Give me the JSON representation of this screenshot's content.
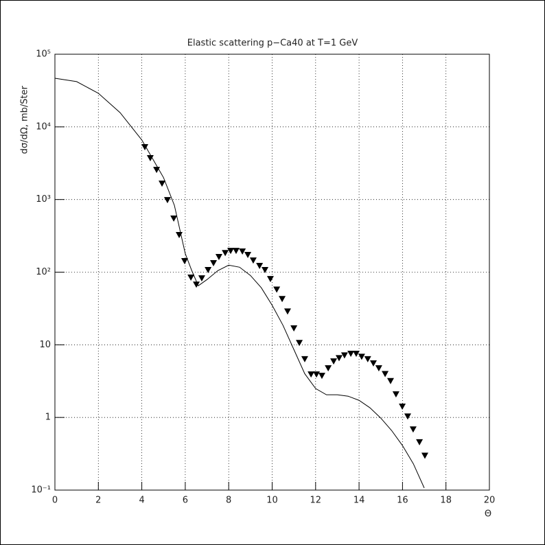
{
  "chart_data": {
    "type": "line",
    "title": "Elastic scattering p−Ca40 at T=1 GeV",
    "x_label": "Θ",
    "y_label": "dσ/dΩ, mb/Ster",
    "log_y": true,
    "grid": true,
    "xlim": [
      0,
      20
    ],
    "xticks": [
      0,
      2,
      4,
      6,
      8,
      10,
      12,
      14,
      16,
      18,
      20
    ],
    "ylim": [
      0.1,
      100000
    ],
    "yticks": [
      {
        "value": 0.1,
        "label": "10⁻¹"
      },
      1,
      10,
      {
        "value": 100,
        "label": "10²"
      },
      {
        "value": 1000,
        "label": "10³"
      },
      {
        "value": 10000,
        "label": "10⁴"
      },
      {
        "value": 100000,
        "label": "10⁵"
      }
    ],
    "series": [
      {
        "style": "markers",
        "marker": "triangle-down",
        "color": "#000000",
        "x": [
          4.14,
          4.39,
          4.68,
          4.93,
          5.18,
          5.47,
          5.72,
          5.97,
          6.26,
          6.51,
          6.76,
          7.05,
          7.3,
          7.55,
          7.84,
          8.09,
          8.34,
          8.63,
          8.88,
          9.13,
          9.42,
          9.67,
          9.92,
          10.21,
          10.46,
          10.71,
          11.0,
          11.25,
          11.5,
          11.79,
          12.04,
          12.29,
          12.58,
          12.83,
          13.08,
          13.33,
          13.62,
          13.87,
          14.12,
          14.4,
          14.66,
          14.91,
          15.2,
          15.45,
          15.7,
          15.99,
          16.24,
          16.49,
          16.78,
          17.03
        ],
        "values": [
          5300,
          3740,
          2580,
          1670,
          991,
          551,
          327,
          143,
          85,
          68,
          83,
          108,
          134,
          163,
          185,
          198,
          198,
          194,
          174,
          146,
          123,
          108,
          81,
          58,
          43,
          29,
          17,
          10.7,
          6.4,
          3.94,
          3.94,
          3.77,
          4.8,
          5.96,
          6.6,
          7.2,
          7.6,
          7.6,
          6.9,
          6.4,
          5.6,
          4.8,
          4.0,
          3.2,
          2.1,
          1.42,
          1.04,
          0.69,
          0.46,
          0.3
        ]
      },
      {
        "style": "line",
        "color": "#000000",
        "x": [
          0,
          1,
          2,
          3,
          4,
          5,
          5.5,
          6,
          6.3,
          6.6,
          7,
          7.5,
          8,
          8.5,
          9,
          9.5,
          10,
          10.5,
          11,
          11.5,
          12,
          12.5,
          13,
          13.5,
          14,
          14.5,
          15,
          15.5,
          16,
          16.5,
          17
        ],
        "values": [
          46700,
          42000,
          29000,
          15700,
          6600,
          2000,
          830,
          180,
          105,
          65,
          79,
          105,
          125,
          117,
          90,
          61,
          35,
          18.5,
          8.6,
          4.0,
          2.5,
          2.05,
          2.05,
          1.96,
          1.72,
          1.36,
          0.98,
          0.66,
          0.41,
          0.23,
          0.107
        ]
      }
    ]
  }
}
